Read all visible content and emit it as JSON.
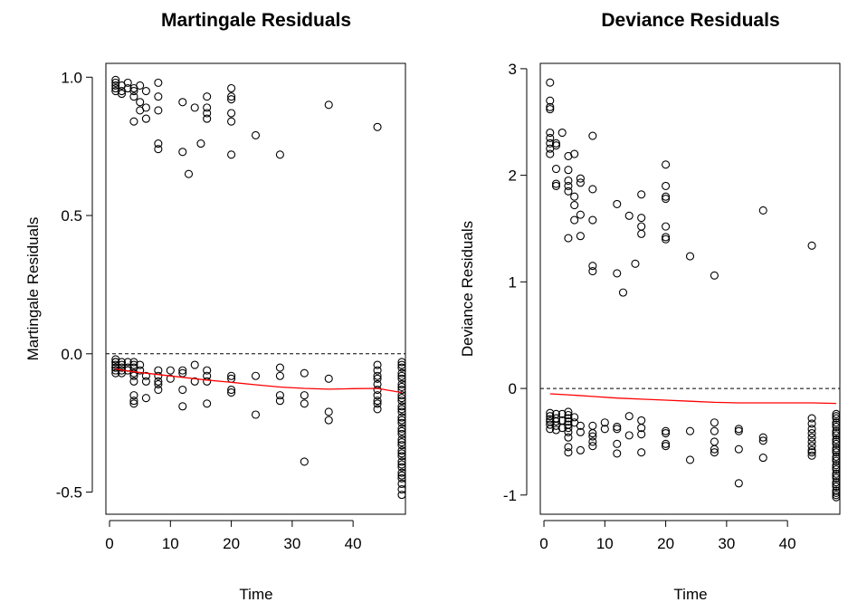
{
  "chart_data": [
    {
      "type": "scatter",
      "title": "Martingale Residuals",
      "xlabel": "Time",
      "ylabel": "Martingale Residuals",
      "xlim": [
        -0.6,
        48.6
      ],
      "ylim": [
        -0.58,
        1.05
      ],
      "xticks": [
        0,
        10,
        20,
        30,
        40
      ],
      "xtick_labels": [
        "0",
        "10",
        "20",
        "30",
        "40"
      ],
      "yticks": [
        -0.5,
        0.0,
        0.5,
        1.0
      ],
      "ytick_labels": [
        "-0.5",
        "0.0",
        "0.5",
        "1.0"
      ],
      "grid": false,
      "reference_line": {
        "y": 0,
        "style": "dashed",
        "color": "#000000"
      },
      "smooth": {
        "color": "#ff0000",
        "x": [
          1,
          4,
          8,
          12,
          16,
          20,
          24,
          28,
          32,
          36,
          40,
          44,
          48
        ],
        "y": [
          -0.055,
          -0.065,
          -0.075,
          -0.085,
          -0.095,
          -0.103,
          -0.112,
          -0.12,
          -0.125,
          -0.128,
          -0.126,
          -0.125,
          -0.14
        ]
      },
      "points": {
        "marker": "open-circle",
        "color": "#000000",
        "x": [
          1,
          1,
          1,
          1,
          1,
          2,
          2,
          2,
          3,
          3,
          4,
          4,
          4,
          4,
          5,
          5,
          5,
          6,
          6,
          6,
          8,
          8,
          8,
          8,
          8,
          12,
          12,
          13,
          14,
          15,
          16,
          16,
          16,
          16,
          20,
          20,
          20,
          20,
          20,
          20,
          24,
          28,
          36,
          44,
          1,
          1,
          1,
          1,
          1,
          1,
          1,
          1,
          2,
          2,
          2,
          2,
          2,
          3,
          3,
          3,
          4,
          4,
          4,
          4,
          4,
          4,
          4,
          4,
          4,
          5,
          5,
          6,
          6,
          6,
          8,
          8,
          8,
          8,
          8,
          10,
          10,
          12,
          12,
          12,
          12,
          14,
          14,
          16,
          16,
          16,
          16,
          20,
          20,
          20,
          20,
          24,
          24,
          28,
          28,
          28,
          28,
          32,
          32,
          32,
          32,
          36,
          36,
          36,
          44,
          44,
          44,
          44,
          44,
          44,
          44,
          44,
          44,
          44,
          48,
          48,
          48,
          48,
          48,
          48,
          48,
          48,
          48,
          48,
          48,
          48,
          48,
          48,
          48,
          48,
          48,
          48,
          48,
          48,
          48,
          48,
          48,
          48,
          48,
          48,
          48,
          48,
          48,
          48,
          48,
          48,
          48,
          48,
          48,
          48
        ],
        "y": [
          0.99,
          0.98,
          0.97,
          0.96,
          0.95,
          0.97,
          0.95,
          0.94,
          0.98,
          0.96,
          0.96,
          0.95,
          0.93,
          0.84,
          0.97,
          0.91,
          0.88,
          0.95,
          0.89,
          0.85,
          0.98,
          0.93,
          0.88,
          0.76,
          0.74,
          0.91,
          0.73,
          0.65,
          0.89,
          0.76,
          0.93,
          0.89,
          0.87,
          0.85,
          0.96,
          0.93,
          0.92,
          0.87,
          0.84,
          0.72,
          0.79,
          0.72,
          0.9,
          0.82,
          -0.02,
          -0.03,
          -0.04,
          -0.05,
          -0.06,
          -0.07,
          -0.03,
          -0.05,
          -0.03,
          -0.05,
          -0.06,
          -0.04,
          -0.07,
          -0.03,
          -0.05,
          -0.06,
          -0.03,
          -0.04,
          -0.05,
          -0.07,
          -0.08,
          -0.1,
          -0.15,
          -0.17,
          -0.18,
          -0.04,
          -0.06,
          -0.08,
          -0.1,
          -0.16,
          -0.06,
          -0.08,
          -0.1,
          -0.11,
          -0.13,
          -0.06,
          -0.09,
          -0.06,
          -0.07,
          -0.13,
          -0.19,
          -0.04,
          -0.1,
          -0.06,
          -0.08,
          -0.1,
          -0.18,
          -0.08,
          -0.09,
          -0.13,
          -0.14,
          -0.08,
          -0.22,
          -0.05,
          -0.08,
          -0.15,
          -0.17,
          -0.07,
          -0.15,
          -0.18,
          -0.39,
          -0.09,
          -0.21,
          -0.24,
          -0.04,
          -0.06,
          -0.08,
          -0.09,
          -0.11,
          -0.13,
          -0.15,
          -0.17,
          -0.18,
          -0.2,
          -0.03,
          -0.05,
          -0.07,
          -0.09,
          -0.11,
          -0.13,
          -0.15,
          -0.17,
          -0.19,
          -0.21,
          -0.23,
          -0.25,
          -0.27,
          -0.29,
          -0.31,
          -0.33,
          -0.35,
          -0.37,
          -0.39,
          -0.41,
          -0.43,
          -0.45,
          -0.47,
          -0.49,
          -0.51,
          -0.04,
          -0.08,
          -0.12,
          -0.16,
          -0.2,
          -0.24,
          -0.28,
          -0.32,
          -0.36,
          -0.4,
          -0.44
        ]
      }
    },
    {
      "type": "scatter",
      "title": "Deviance Residuals",
      "xlabel": "Time",
      "ylabel": "Deviance Residuals",
      "xlim": [
        -0.6,
        48.6
      ],
      "ylim": [
        -1.18,
        3.05
      ],
      "xticks": [
        0,
        10,
        20,
        30,
        40
      ],
      "xtick_labels": [
        "0",
        "10",
        "20",
        "30",
        "40"
      ],
      "yticks": [
        -1,
        0,
        1,
        2,
        3
      ],
      "ytick_labels": [
        "-1",
        "0",
        "1",
        "2",
        "3"
      ],
      "grid": false,
      "reference_line": {
        "y": 0,
        "style": "dashed",
        "color": "#000000"
      },
      "smooth": {
        "color": "#ff0000",
        "x": [
          1,
          4,
          8,
          12,
          16,
          20,
          24,
          28,
          32,
          36,
          40,
          44,
          48
        ],
        "y": [
          -0.05,
          -0.06,
          -0.075,
          -0.09,
          -0.1,
          -0.11,
          -0.12,
          -0.13,
          -0.135,
          -0.135,
          -0.135,
          -0.135,
          -0.14
        ]
      },
      "points": {
        "marker": "open-circle",
        "color": "#000000",
        "x": [
          1,
          1,
          1,
          1,
          1,
          1,
          1,
          1,
          1,
          2,
          2,
          2,
          2,
          2,
          3,
          4,
          4,
          4,
          4,
          4,
          4,
          5,
          5,
          5,
          5,
          6,
          6,
          6,
          6,
          8,
          8,
          8,
          8,
          8,
          12,
          12,
          13,
          14,
          15,
          16,
          16,
          16,
          16,
          20,
          20,
          20,
          20,
          20,
          20,
          20,
          24,
          28,
          36,
          44,
          1,
          1,
          1,
          1,
          1,
          1,
          2,
          2,
          2,
          2,
          2,
          3,
          3,
          3,
          4,
          4,
          4,
          4,
          4,
          4,
          4,
          4,
          4,
          4,
          5,
          5,
          6,
          6,
          6,
          8,
          8,
          8,
          8,
          8,
          10,
          10,
          12,
          12,
          12,
          12,
          14,
          14,
          16,
          16,
          16,
          16,
          20,
          20,
          20,
          20,
          24,
          24,
          28,
          28,
          28,
          28,
          28,
          32,
          32,
          32,
          32,
          36,
          36,
          36,
          44,
          44,
          44,
          44,
          44,
          44,
          44,
          44,
          44,
          44,
          48,
          48,
          48,
          48,
          48,
          48,
          48,
          48,
          48,
          48,
          48,
          48,
          48,
          48,
          48,
          48,
          48,
          48,
          48,
          48,
          48,
          48,
          48,
          48,
          48,
          48,
          48,
          48,
          48,
          48,
          48
        ],
        "y": [
          2.87,
          2.7,
          2.64,
          2.62,
          2.4,
          2.35,
          2.3,
          2.25,
          2.2,
          2.3,
          2.28,
          2.06,
          1.92,
          1.9,
          2.4,
          2.18,
          2.05,
          1.95,
          1.9,
          1.85,
          1.41,
          2.2,
          1.8,
          1.72,
          1.58,
          1.97,
          1.93,
          1.63,
          1.43,
          2.37,
          1.87,
          1.58,
          1.15,
          1.1,
          1.73,
          1.08,
          0.9,
          1.62,
          1.17,
          1.82,
          1.6,
          1.52,
          1.45,
          2.1,
          1.9,
          1.8,
          1.78,
          1.52,
          1.42,
          1.4,
          1.24,
          1.06,
          1.67,
          1.34,
          -0.23,
          -0.26,
          -0.29,
          -0.31,
          -0.34,
          -0.38,
          -0.24,
          -0.28,
          -0.31,
          -0.35,
          -0.39,
          -0.24,
          -0.3,
          -0.37,
          -0.22,
          -0.25,
          -0.28,
          -0.31,
          -0.34,
          -0.37,
          -0.41,
          -0.46,
          -0.55,
          -0.6,
          -0.27,
          -0.32,
          -0.35,
          -0.41,
          -0.58,
          -0.35,
          -0.42,
          -0.45,
          -0.5,
          -0.54,
          -0.32,
          -0.38,
          -0.36,
          -0.38,
          -0.52,
          -0.61,
          -0.26,
          -0.44,
          -0.3,
          -0.37,
          -0.43,
          -0.6,
          -0.4,
          -0.42,
          -0.52,
          -0.54,
          -0.4,
          -0.67,
          -0.32,
          -0.4,
          -0.5,
          -0.57,
          -0.6,
          -0.38,
          -0.4,
          -0.57,
          -0.89,
          -0.46,
          -0.49,
          -0.65,
          -0.28,
          -0.33,
          -0.38,
          -0.42,
          -0.46,
          -0.5,
          -0.54,
          -0.58,
          -0.6,
          -0.63,
          -0.24,
          -0.28,
          -0.32,
          -0.36,
          -0.4,
          -0.44,
          -0.48,
          -0.52,
          -0.56,
          -0.6,
          -0.64,
          -0.68,
          -0.72,
          -0.76,
          -0.8,
          -0.84,
          -0.88,
          -0.92,
          -0.96,
          -1.0,
          -1.02,
          -0.26,
          -0.34,
          -0.42,
          -0.5,
          -0.58,
          -0.66,
          -0.74,
          -0.82,
          -0.9,
          -0.98
        ]
      }
    }
  ]
}
